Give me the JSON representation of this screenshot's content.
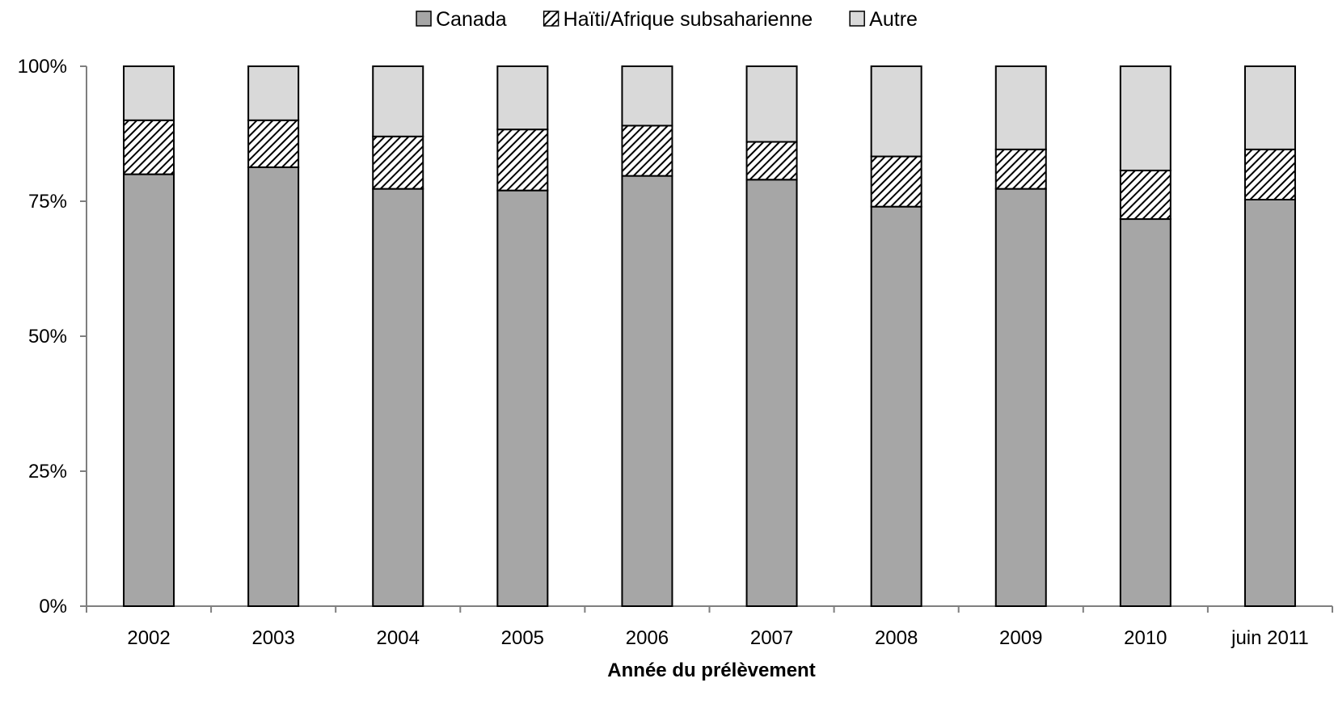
{
  "chart_data": {
    "type": "bar",
    "stacked": true,
    "percent": true,
    "categories": [
      "2002",
      "2003",
      "2004",
      "2005",
      "2006",
      "2007",
      "2008",
      "2009",
      "2010",
      "juin 2011"
    ],
    "series": [
      {
        "name": "Canada",
        "color": "#a6a6a6",
        "pattern": "solid",
        "values": [
          80.0,
          81.3,
          77.3,
          77.0,
          79.7,
          79.0,
          74.0,
          77.3,
          71.7,
          75.3
        ]
      },
      {
        "name": "Haïti/Afrique subsaharienne",
        "color": "#000000",
        "pattern": "diagonal-hatch",
        "values": [
          10.0,
          8.7,
          9.7,
          11.3,
          9.3,
          7.0,
          9.3,
          7.3,
          9.0,
          9.3
        ]
      },
      {
        "name": "Autre",
        "color": "#d9d9d9",
        "pattern": "solid",
        "values": [
          10.0,
          10.0,
          13.0,
          11.7,
          11.0,
          14.0,
          16.7,
          15.4,
          19.3,
          15.4
        ]
      }
    ],
    "xlabel": "Année du prélèvement",
    "ylabel": "",
    "ylim": [
      0,
      100
    ],
    "yticks": [
      "0%",
      "25%",
      "50%",
      "75%",
      "100%"
    ],
    "legend": {
      "position": "top-center"
    },
    "grid": false
  }
}
